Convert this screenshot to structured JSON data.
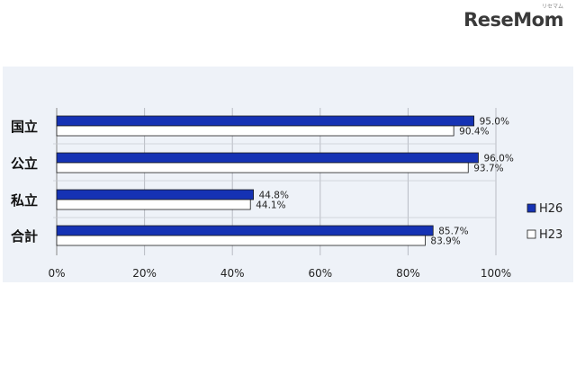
{
  "brand": {
    "logo_text": "ReseMom",
    "logo_ruby": "リセマム"
  },
  "chart_data": {
    "type": "bar",
    "orientation": "horizontal",
    "categories": [
      "国立",
      "公立",
      "私立",
      "合計"
    ],
    "series": [
      {
        "name": "H26",
        "values": [
          95.0,
          96.0,
          44.8,
          85.7
        ],
        "labels": [
          "95.0%",
          "96.0%",
          "44.8%",
          "85.7%"
        ],
        "color": "#1532b4"
      },
      {
        "name": "H23",
        "values": [
          90.4,
          93.7,
          44.1,
          83.9
        ],
        "labels": [
          "90.4%",
          "93.7%",
          "44.1%",
          "83.9%"
        ],
        "color": "#ffffff"
      }
    ],
    "xlim": [
      0,
      100
    ],
    "xticks": [
      "0%",
      "20%",
      "40%",
      "60%",
      "80%",
      "100%"
    ],
    "grid": true,
    "legend_position": "right",
    "title": "",
    "xlabel": "",
    "ylabel": ""
  }
}
